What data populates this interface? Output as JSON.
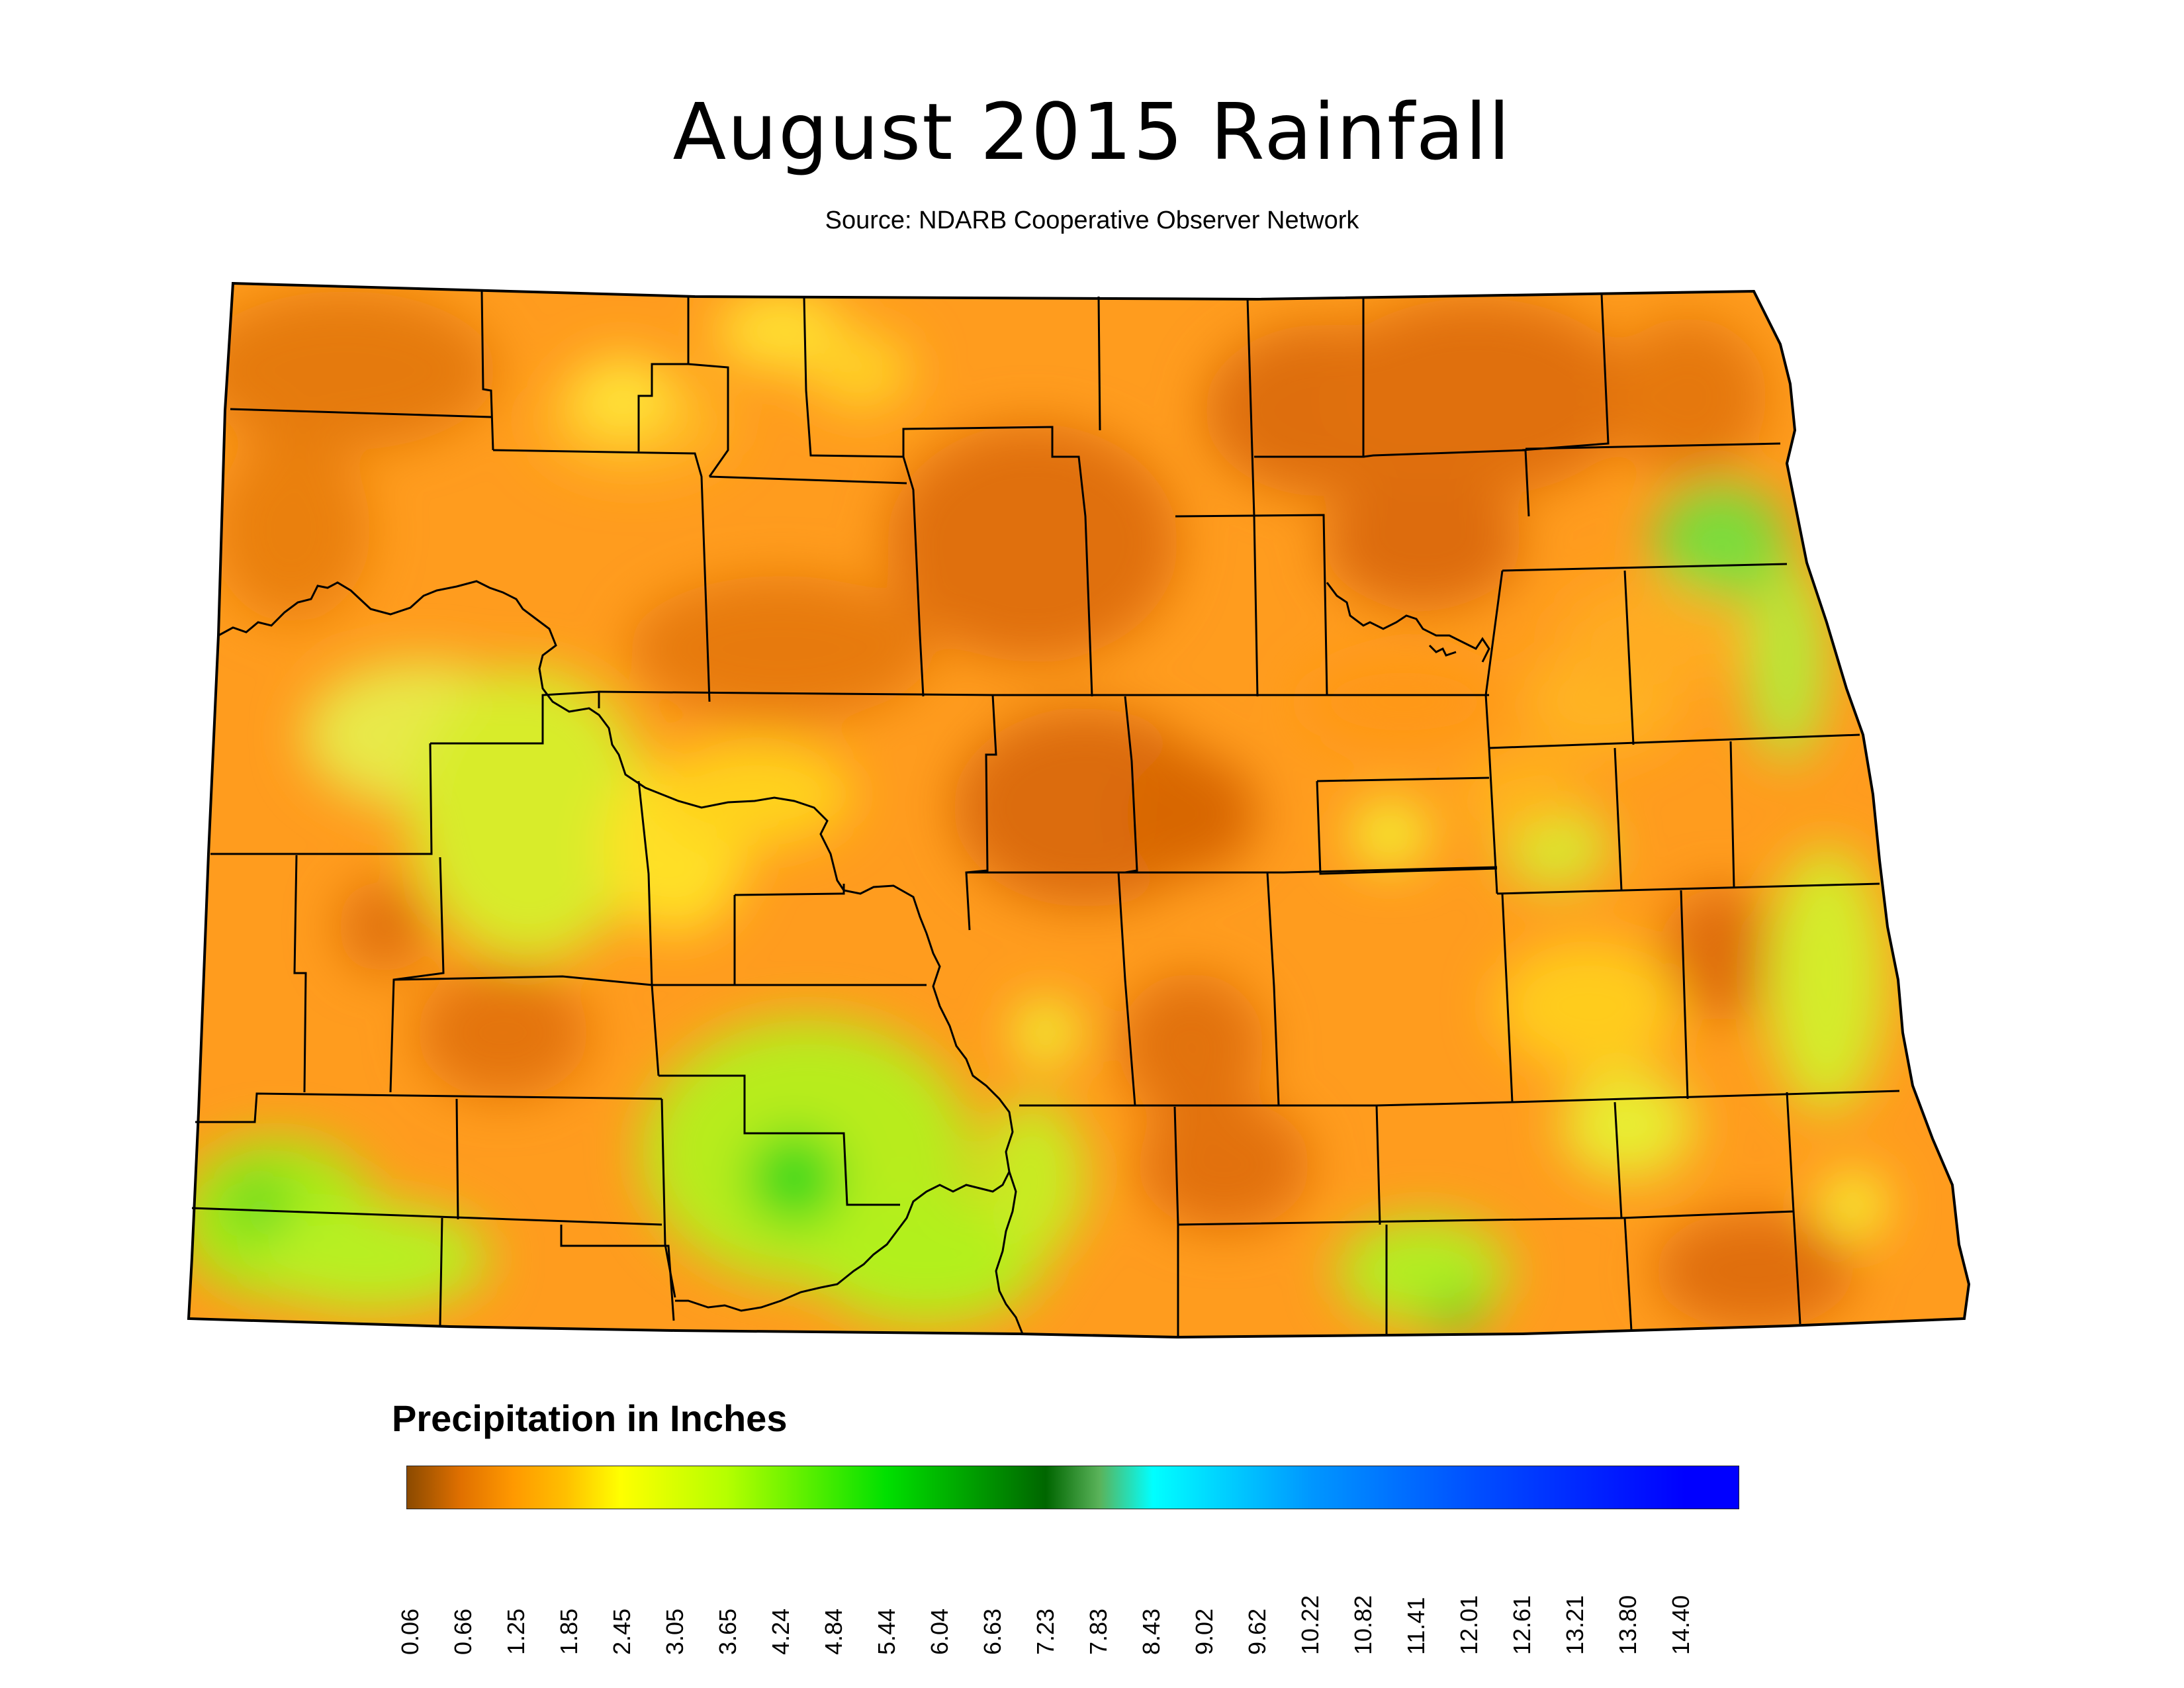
{
  "title": "August 2015 Rainfall",
  "source": "Source: NDARB Cooperative Observer Network",
  "region": "North Dakota",
  "legend": {
    "title": "Precipitation in Inches",
    "unit": "inches",
    "ticks": [
      "0.06",
      "0.66",
      "1.25",
      "1.85",
      "2.45",
      "3.05",
      "3.65",
      "4.24",
      "4.84",
      "5.44",
      "6.04",
      "6.63",
      "7.23",
      "7.83",
      "8.43",
      "9.02",
      "9.62",
      "10.22",
      "10.82",
      "11.41",
      "12.01",
      "12.61",
      "13.21",
      "13.80",
      "14.40"
    ],
    "color_stops": [
      {
        "value": 0.06,
        "color": "#8b4a00"
      },
      {
        "value": 0.66,
        "color": "#e07000"
      },
      {
        "value": 1.25,
        "color": "#ff9900"
      },
      {
        "value": 1.85,
        "color": "#ffc000"
      },
      {
        "value": 2.45,
        "color": "#ffff00"
      },
      {
        "value": 3.65,
        "color": "#b5ff00"
      },
      {
        "value": 5.44,
        "color": "#00e000"
      },
      {
        "value": 7.23,
        "color": "#006600"
      },
      {
        "value": 7.83,
        "color": "#5ab35a"
      },
      {
        "value": 8.43,
        "color": "#00ffff"
      },
      {
        "value": 10.22,
        "color": "#0096ff"
      },
      {
        "value": 12.01,
        "color": "#0050ff"
      },
      {
        "value": 14.4,
        "color": "#0000ff"
      }
    ]
  }
}
